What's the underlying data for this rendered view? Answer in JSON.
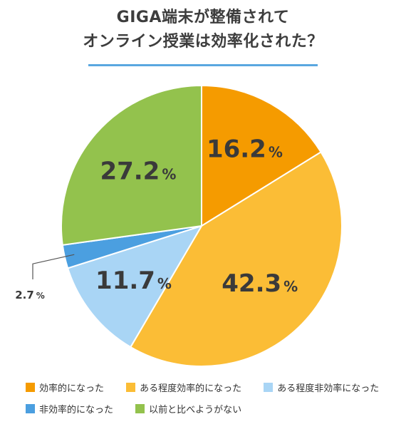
{
  "title": {
    "line1": "GIGA端末が整備されて",
    "line2": "オンライン授業は効率化された？"
  },
  "chart_data": {
    "type": "pie",
    "categories": [
      "効率的になった",
      "ある程度効率的になった",
      "ある程度非効率になった",
      "非効率的になった",
      "以前と比べようがない"
    ],
    "values": [
      16.2,
      42.3,
      11.7,
      2.7,
      27.2
    ],
    "labels": [
      "16.2",
      "42.3",
      "11.7",
      "2.7",
      "27.2"
    ],
    "unit": "%",
    "colors": [
      "#f59b00",
      "#fbbd36",
      "#a9d5f5",
      "#4b9fe0",
      "#93c24d"
    ],
    "legend_placement": "bottom"
  },
  "legend": {
    "items": [
      {
        "label": "効率的になった",
        "color": "#f59b00"
      },
      {
        "label": "ある程度効率的になった",
        "color": "#fbbd36"
      },
      {
        "label": "ある程度非効率になった",
        "color": "#a9d5f5"
      },
      {
        "label": "非効率的になった",
        "color": "#4b9fe0"
      },
      {
        "label": "以前と比べようがない",
        "color": "#93c24d"
      }
    ]
  }
}
